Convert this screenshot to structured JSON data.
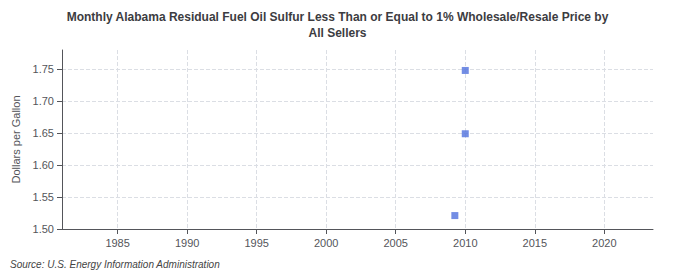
{
  "chart_data": {
    "type": "scatter",
    "title": "Monthly Alabama Residual Fuel Oil Sulfur Less Than or Equal to 1% Wholesale/Resale Price by\nAll Sellers",
    "ylabel": "Dollars per Gallon",
    "annotations": [
      "Source: U.S. Energy Information Administration"
    ],
    "x": [
      2009.25,
      2010.0,
      2010.0
    ],
    "values": [
      1.521,
      1.649,
      1.748
    ],
    "marker": "square",
    "xlim": [
      1981.0,
      2023.5
    ],
    "ylim": [
      1.5,
      1.78
    ],
    "xticks": [
      1985,
      1990,
      1995,
      2000,
      2005,
      2010,
      2015,
      2020
    ],
    "yticks": [
      {
        "value": 1.5,
        "label": "1.50"
      },
      1.55,
      {
        "value": 1.6,
        "label": "1.60"
      },
      1.65,
      {
        "value": 1.7,
        "label": "1.70"
      },
      1.75
    ],
    "grid": true
  }
}
